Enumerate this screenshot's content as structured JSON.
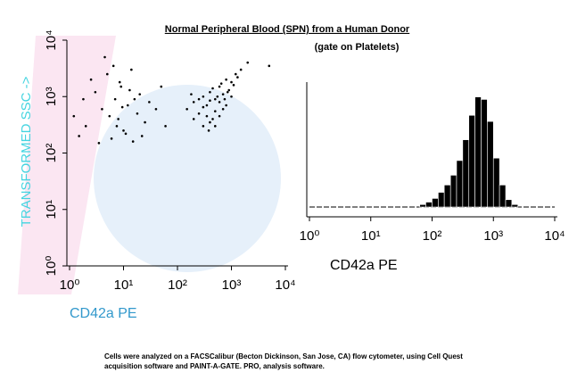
{
  "caption": [
    "Cells were analyzed on a FACSCalibur (Becton Dickinson, San Jose, CA) flow cytometer, using Cell Quest",
    "acquisition software and PAINT-A-GATE. PRO, analysis software."
  ],
  "chart_data": [
    {
      "type": "scatter",
      "title": "Normal Peripheral Blood (SPN) from a Human Donor",
      "subtitle": "(gate on Platelets)",
      "x_label": "CD42a PE",
      "y_label": "TRANSFORMED SSC ->",
      "log_x": true,
      "log_y": true,
      "xlim": [
        1,
        10000
      ],
      "ylim": [
        1,
        10000
      ],
      "xticks": [
        {
          "value": 1,
          "label": "10⁰"
        },
        {
          "value": 10,
          "label": "10¹"
        },
        {
          "value": 100,
          "label": "10²"
        },
        {
          "value": 1000,
          "label": "10³"
        },
        {
          "value": 10000,
          "label": "10⁴"
        }
      ],
      "yticks": [
        {
          "value": 1,
          "label": "10⁰"
        },
        {
          "value": 10,
          "label": "10¹"
        },
        {
          "value": 100,
          "label": "10²"
        },
        {
          "value": 1000,
          "label": "10³"
        },
        {
          "value": 10000,
          "label": "10⁴"
        }
      ],
      "series": [
        {
          "color": "#000000",
          "x": [
            2,
            3,
            4,
            5,
            6,
            7,
            8,
            9,
            10,
            12,
            14,
            15,
            18,
            20,
            25,
            30,
            1.5,
            2.5,
            3.5,
            5.5,
            6.5,
            8.5,
            11,
            13,
            4.5,
            7.5,
            9.5,
            16,
            22,
            40,
            50,
            60,
            1.2,
            1.8,
            150,
            200,
            250,
            300,
            350,
            400,
            450,
            500,
            600,
            700,
            800,
            900,
            1000,
            1200,
            1500,
            2000,
            300,
            400,
            500,
            600,
            700,
            250,
            350,
            450,
            550,
            650,
            750,
            850,
            1100,
            1300,
            200,
            300,
            400,
            500,
            600,
            800,
            1000,
            180,
            380,
            5000
          ],
          "values": [
            300,
            1200,
            600,
            2500,
            180,
            900,
            400,
            1500,
            250,
            700,
            3000,
            160,
            500,
            1100,
            350,
            800,
            200,
            2000,
            150,
            450,
            3500,
            1800,
            220,
            1300,
            5000,
            300,
            650,
            900,
            200,
            600,
            1500,
            300,
            450,
            900,
            600,
            800,
            500,
            1000,
            700,
            1200,
            400,
            900,
            1500,
            1100,
            2000,
            1300,
            1800,
            2500,
            3000,
            4000,
            300,
            350,
            550,
            800,
            600,
            900,
            450,
            1400,
            1000,
            1700,
            900,
            1200,
            1600,
            2200,
            400,
            650,
            850,
            300,
            450,
            700,
            1000,
            1100,
            250,
            3500
          ]
        }
      ]
    },
    {
      "type": "histogram",
      "x_label": "CD42a PE",
      "log_x": true,
      "xlim": [
        1,
        10000
      ],
      "ylim": [
        0,
        100
      ],
      "xticks": [
        {
          "value": 1,
          "label": "10⁰"
        },
        {
          "value": 10,
          "label": "10¹"
        },
        {
          "value": 100,
          "label": "10²"
        },
        {
          "value": 1000,
          "label": "10³"
        },
        {
          "value": 10000,
          "label": "10⁴"
        }
      ],
      "color": "#000000",
      "bins": [
        63,
        79,
        100,
        126,
        158,
        200,
        251,
        316,
        398,
        501,
        631,
        794,
        1000,
        1259,
        1585,
        1995,
        2512
      ],
      "values": [
        2,
        4,
        7,
        12,
        18,
        26,
        38,
        55,
        75,
        90,
        88,
        70,
        40,
        18,
        6,
        2
      ]
    }
  ]
}
